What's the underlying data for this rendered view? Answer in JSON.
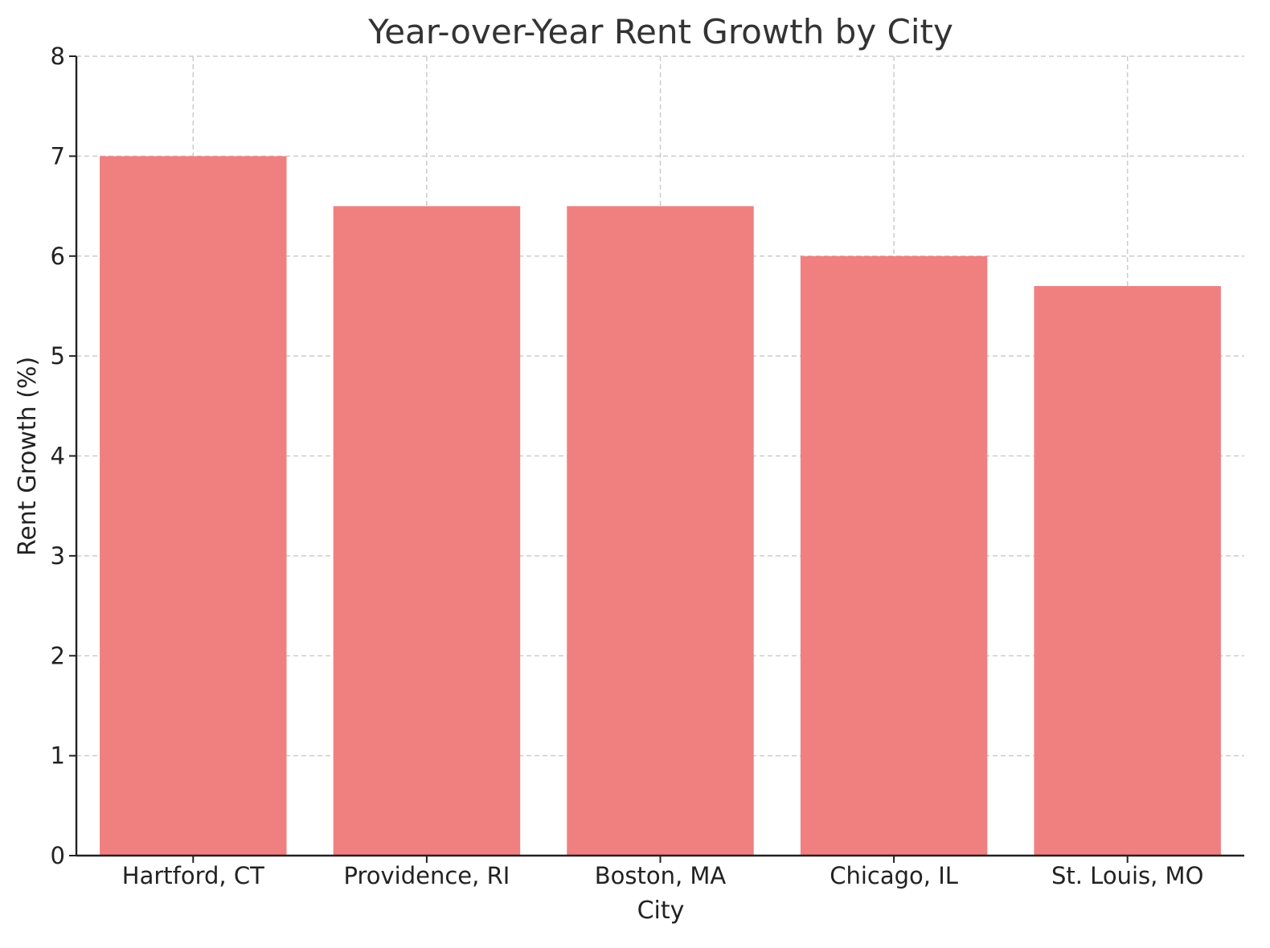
{
  "chart_data": {
    "type": "bar",
    "title": "Year-over-Year Rent Growth by City",
    "xlabel": "City",
    "ylabel": "Rent Growth (%)",
    "categories": [
      "Hartford, CT",
      "Providence, RI",
      "Boston, MA",
      "Chicago, IL",
      "St. Louis, MO"
    ],
    "values": [
      7.0,
      6.5,
      6.5,
      6.0,
      5.7
    ],
    "ylim": [
      0,
      8
    ],
    "yticks": [
      0,
      1,
      2,
      3,
      4,
      5,
      6,
      7,
      8
    ],
    "grid": true,
    "bar_color": "#f08080"
  }
}
